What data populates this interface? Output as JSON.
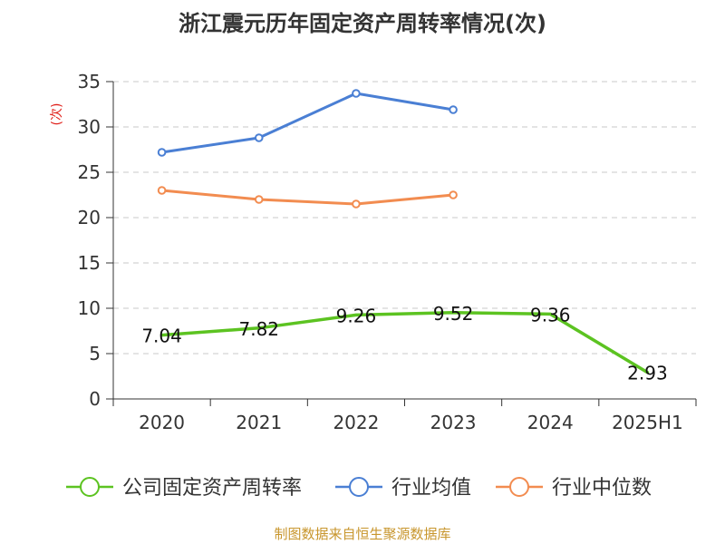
{
  "chart_data": {
    "type": "line",
    "title": "浙江震元历年固定资产周转率情况(次)",
    "ylabel": "(次)",
    "xlabel": "",
    "categories": [
      "2020",
      "2021",
      "2022",
      "2023",
      "2024",
      "2025H1"
    ],
    "yticks": [
      0,
      5,
      10,
      15,
      20,
      25,
      30,
      35
    ],
    "ylim": [
      0,
      35
    ],
    "grid": true,
    "legend_position": "bottom",
    "series": [
      {
        "name": "公司固定资产周转率",
        "values": [
          7.04,
          7.82,
          9.26,
          9.52,
          9.36,
          2.93
        ],
        "labels": [
          "7.04",
          "7.82",
          "9.26",
          "9.52",
          "9.36",
          "2.93"
        ],
        "color": "#5cc321"
      },
      {
        "name": "行业均值",
        "values": [
          27.2,
          28.8,
          33.7,
          31.9,
          null,
          null
        ],
        "color": "#4a7fd4"
      },
      {
        "name": "行业中位数",
        "values": [
          23.0,
          22.0,
          21.5,
          22.5,
          null,
          null
        ],
        "color": "#f28c50"
      }
    ]
  },
  "source_text": "制图数据来自恒生聚源数据库"
}
